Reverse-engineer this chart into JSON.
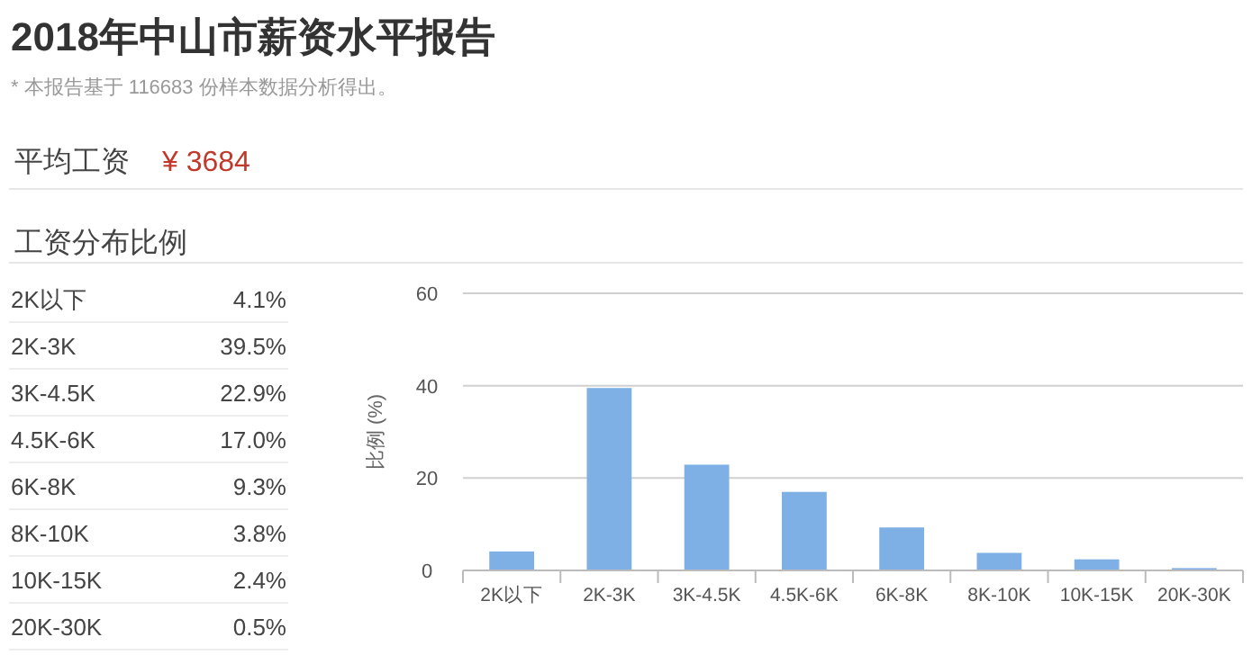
{
  "chart_data": [
    {
      "type": "other",
      "title": "2018年中山市薪资水平报告",
      "subtitle": "* 本报告基于 116683 份样本数据分析得出。",
      "annotations": [
        "平均工资",
        "¥ 3684",
        "工资分布比例",
        "2K以下",
        "4.1%",
        "2K-3K",
        "39.5%",
        "3K-4.5K",
        "22.9%",
        "4.5K-6K",
        "17.0%",
        "6K-8K",
        "9.3%",
        "8K-10K",
        "3.8%",
        "10K-15K",
        "2.4%",
        "20K-30K",
        "0.5%"
      ]
    },
    {
      "type": "bar",
      "ylabel": "比例 (%)",
      "categories": [
        "2K以下",
        "2K-3K",
        "3K-4.5K",
        "4.5K-6K",
        "6K-8K",
        "8K-10K",
        "10K-15K",
        "20K-30K"
      ],
      "values": [
        4.1,
        39.5,
        22.9,
        17.0,
        9.3,
        3.8,
        2.4,
        0.5
      ],
      "color": "#7eb0e6",
      "ylim": [
        0,
        60
      ],
      "yticks": [
        0,
        20,
        40,
        60
      ],
      "grid": "y"
    }
  ]
}
